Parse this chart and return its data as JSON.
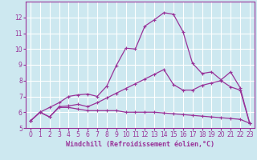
{
  "title": "",
  "xlabel": "Windchill (Refroidissement éolien,°C)",
  "bg_color": "#cde8f0",
  "grid_color": "#ffffff",
  "line_color": "#993399",
  "spine_color": "#993399",
  "xlim": [
    -0.5,
    23.5
  ],
  "ylim": [
    5,
    13
  ],
  "xticks": [
    0,
    1,
    2,
    3,
    4,
    5,
    6,
    7,
    8,
    9,
    10,
    11,
    12,
    13,
    14,
    15,
    16,
    17,
    18,
    19,
    20,
    21,
    22,
    23
  ],
  "yticks": [
    5,
    6,
    7,
    8,
    9,
    10,
    11,
    12
  ],
  "curve1_x": [
    0,
    1,
    2,
    3,
    4,
    5,
    6,
    7,
    8,
    9,
    10,
    11,
    12,
    13,
    14,
    15,
    16,
    17,
    18,
    19,
    20,
    21,
    22,
    23
  ],
  "curve1_y": [
    5.45,
    6.0,
    5.7,
    6.3,
    6.3,
    6.2,
    6.1,
    6.1,
    6.1,
    6.1,
    6.0,
    6.0,
    6.0,
    6.0,
    5.95,
    5.9,
    5.85,
    5.8,
    5.75,
    5.7,
    5.65,
    5.6,
    5.55,
    5.3
  ],
  "curve2_x": [
    0,
    1,
    2,
    3,
    4,
    5,
    6,
    7,
    8,
    9,
    10,
    11,
    12,
    13,
    14,
    15,
    16,
    17,
    18,
    19,
    20,
    21,
    22,
    23
  ],
  "curve2_y": [
    5.45,
    6.0,
    5.7,
    6.35,
    6.4,
    6.5,
    6.35,
    6.6,
    6.9,
    7.2,
    7.5,
    7.8,
    8.1,
    8.4,
    8.7,
    7.75,
    7.4,
    7.4,
    7.7,
    7.85,
    8.0,
    7.6,
    7.4,
    5.3
  ],
  "curve3_x": [
    0,
    1,
    2,
    3,
    4,
    5,
    6,
    7,
    8,
    9,
    10,
    11,
    12,
    13,
    14,
    15,
    16,
    17,
    18,
    19,
    20,
    21,
    22,
    23
  ],
  "curve3_y": [
    5.45,
    6.0,
    6.3,
    6.6,
    7.0,
    7.1,
    7.15,
    7.0,
    7.65,
    8.95,
    10.05,
    10.0,
    11.45,
    11.85,
    12.3,
    12.2,
    11.1,
    9.1,
    8.45,
    8.55,
    8.05,
    8.55,
    7.55,
    5.3
  ],
  "tick_fontsize": 5.5,
  "xlabel_fontsize": 6.0,
  "linewidth": 0.9,
  "markersize": 2.5,
  "markeredgewidth": 0.8
}
